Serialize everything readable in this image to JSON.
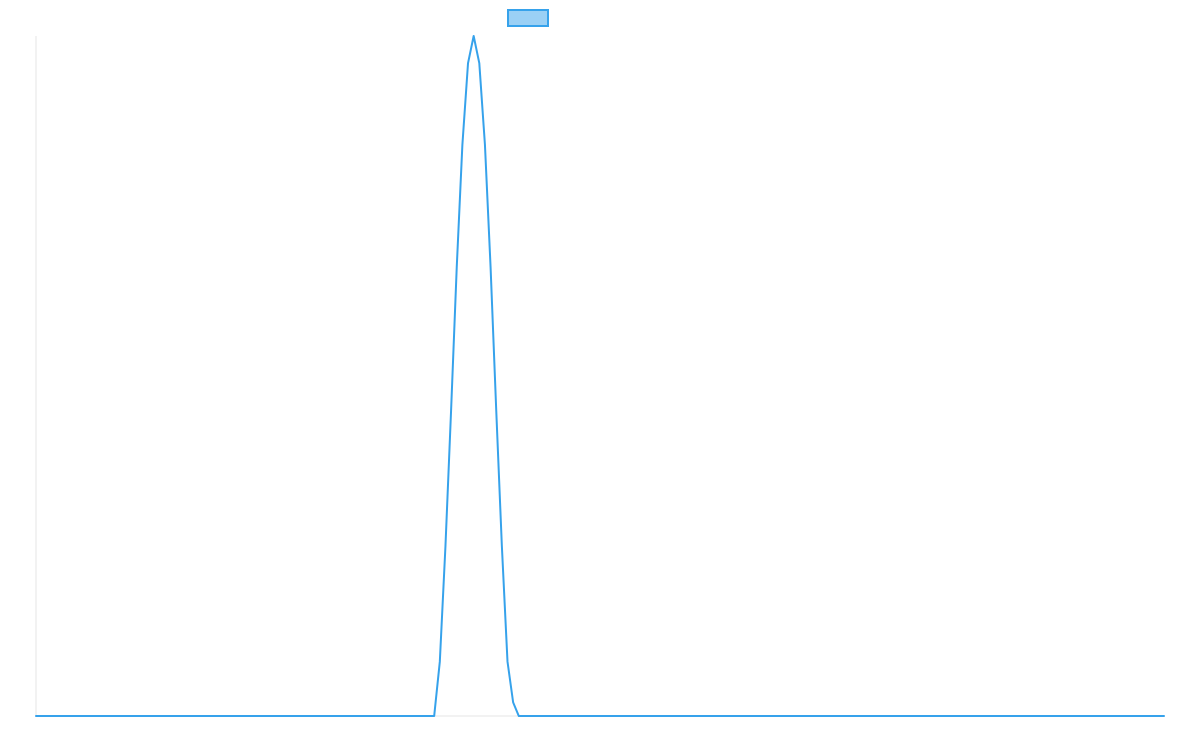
{
  "chart_data": {
    "type": "line",
    "title": "",
    "xlabel": "",
    "ylabel": "",
    "xlim": [
      0,
      100
    ],
    "ylim": [
      0,
      1
    ],
    "grid": false,
    "legend": {
      "placement": "top-center",
      "show_label": false
    },
    "series": [
      {
        "color": "#36a2eb",
        "fill_color": "#9ad0f5",
        "x": [
          0,
          35.3,
          35.8,
          36.3,
          36.8,
          37.3,
          37.8,
          38.3,
          38.8,
          39.3,
          39.8,
          40.3,
          40.8,
          41.3,
          41.8,
          42.3,
          42.8,
          43.3,
          100
        ],
        "y": [
          0,
          0,
          0.08,
          0.25,
          0.45,
          0.66,
          0.84,
          0.96,
          1.0,
          0.96,
          0.84,
          0.66,
          0.45,
          0.25,
          0.08,
          0.02,
          0,
          0,
          0
        ]
      }
    ]
  }
}
